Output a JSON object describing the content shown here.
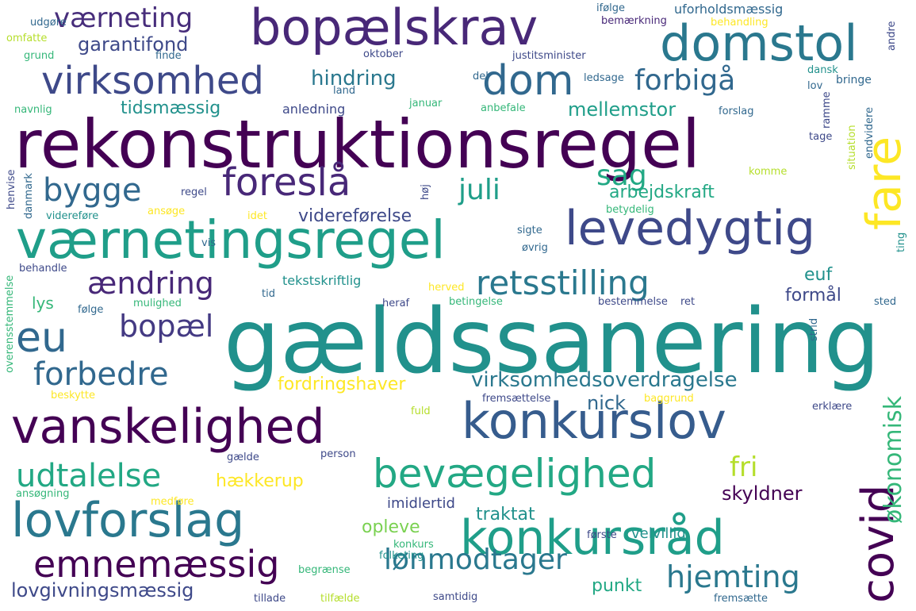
{
  "words": [
    {
      "text": "gældssanering",
      "color": "#21918c"
    },
    {
      "text": "rekonstruktionsregel",
      "color": "#440154"
    },
    {
      "text": "værnetingsregel",
      "color": "#1f9e89"
    },
    {
      "text": "bopælskrav",
      "color": "#482878"
    },
    {
      "text": "domstol",
      "color": "#2a788e"
    },
    {
      "text": "konkurslov",
      "color": "#365c8d"
    },
    {
      "text": "vanskelighed",
      "color": "#440154"
    },
    {
      "text": "lovforslag",
      "color": "#2a788e"
    },
    {
      "text": "konkursråd",
      "color": "#1f9e89"
    },
    {
      "text": "levedygtig",
      "color": "#3e4989"
    },
    {
      "text": "bevægelighed",
      "color": "#22a884"
    },
    {
      "text": "virksomhed",
      "color": "#3e4989"
    },
    {
      "text": "foreslå",
      "color": "#482878"
    },
    {
      "text": "dom",
      "color": "#31688e"
    },
    {
      "text": "retsstilling",
      "color": "#2a788e"
    },
    {
      "text": "fare",
      "color": "#fde725"
    },
    {
      "text": "covid",
      "color": "#440154"
    },
    {
      "text": "eu",
      "color": "#31688e"
    },
    {
      "text": "emnemæssig",
      "color": "#440154"
    },
    {
      "text": "forbedre",
      "color": "#31688e"
    },
    {
      "text": "bygge",
      "color": "#31688e"
    },
    {
      "text": "udtalelse",
      "color": "#22a884"
    },
    {
      "text": "forbigå",
      "color": "#31688e"
    },
    {
      "text": "ændring",
      "color": "#482878"
    },
    {
      "text": "bopæl",
      "color": "#443a83"
    },
    {
      "text": "økonomisk",
      "color": "#35b779"
    },
    {
      "text": "hjemting",
      "color": "#2a788e"
    },
    {
      "text": "lønmodtager",
      "color": "#2a788e"
    },
    {
      "text": "værneting",
      "color": "#472d7b"
    },
    {
      "text": "juli",
      "color": "#1f9e89"
    },
    {
      "text": "sag",
      "color": "#22a884"
    },
    {
      "text": "virksomhedsoverdragelse",
      "color": "#2a788e"
    },
    {
      "text": "lovgivningsmæssig",
      "color": "#3e4989"
    },
    {
      "text": "fri",
      "color": "#b5de2b"
    },
    {
      "text": "hindring",
      "color": "#2a788e"
    },
    {
      "text": "garantifond",
      "color": "#3e4989"
    },
    {
      "text": "mellemstor",
      "color": "#1f9e89"
    },
    {
      "text": "tidsmæssig",
      "color": "#21918c"
    },
    {
      "text": "arbejdskraft",
      "color": "#22a884"
    },
    {
      "text": "videreførelse",
      "color": "#3e4989"
    },
    {
      "text": "fordringshaver",
      "color": "#fde725"
    },
    {
      "text": "hækkerup",
      "color": "#fde725"
    },
    {
      "text": "skyldner",
      "color": "#440154"
    },
    {
      "text": "opleve",
      "color": "#7ad151"
    },
    {
      "text": "traktat",
      "color": "#21918c"
    },
    {
      "text": "punkt",
      "color": "#22a884"
    },
    {
      "text": "nick",
      "color": "#31688e"
    },
    {
      "text": "euf",
      "color": "#21918c"
    },
    {
      "text": "formål",
      "color": "#3e4989"
    },
    {
      "text": "lys",
      "color": "#35b779"
    },
    {
      "text": "imidlertid",
      "color": "#3e4989"
    },
    {
      "text": "velvillig",
      "color": "#21918c"
    },
    {
      "text": "tekstskriftlig",
      "color": "#21918c"
    },
    {
      "text": "uforholdsmæssig",
      "color": "#31688e"
    },
    {
      "text": "anledning",
      "color": "#3e4989"
    },
    {
      "text": "udgøre",
      "color": "#31688e"
    },
    {
      "text": "omfatte",
      "color": "#b5de2b"
    },
    {
      "text": "grund",
      "color": "#35b779"
    },
    {
      "text": "finde",
      "color": "#31688e"
    },
    {
      "text": "oktober",
      "color": "#3e4989"
    },
    {
      "text": "justitsminister",
      "color": "#3e4989"
    },
    {
      "text": "ifølge",
      "color": "#31688e"
    },
    {
      "text": "bemærkning",
      "color": "#482878"
    },
    {
      "text": "behandling",
      "color": "#fde725"
    },
    {
      "text": "del",
      "color": "#31688e"
    },
    {
      "text": "land",
      "color": "#31688e"
    },
    {
      "text": "ledsage",
      "color": "#31688e"
    },
    {
      "text": "dansk",
      "color": "#21918c"
    },
    {
      "text": "lov",
      "color": "#31688e"
    },
    {
      "text": "bringe",
      "color": "#31688e"
    },
    {
      "text": "navnlig",
      "color": "#35b779"
    },
    {
      "text": "januar",
      "color": "#35b779"
    },
    {
      "text": "anbefale",
      "color": "#35b779"
    },
    {
      "text": "forslag",
      "color": "#31688e"
    },
    {
      "text": "tage",
      "color": "#3e4989"
    },
    {
      "text": "komme",
      "color": "#b5de2b"
    },
    {
      "text": "regel",
      "color": "#3e4989"
    },
    {
      "text": "videreføre",
      "color": "#21918c"
    },
    {
      "text": "ansøge",
      "color": "#fde725"
    },
    {
      "text": "idet",
      "color": "#fde725"
    },
    {
      "text": "betydelig",
      "color": "#35b779"
    },
    {
      "text": "sigte",
      "color": "#31688e"
    },
    {
      "text": "øvrig",
      "color": "#31688e"
    },
    {
      "text": "vis",
      "color": "#31688e"
    },
    {
      "text": "behandle",
      "color": "#3e4989"
    },
    {
      "text": "mulighed",
      "color": "#35b779"
    },
    {
      "text": "tid",
      "color": "#31688e"
    },
    {
      "text": "herved",
      "color": "#fde725"
    },
    {
      "text": "følge",
      "color": "#31688e"
    },
    {
      "text": "heraf",
      "color": "#3e4989"
    },
    {
      "text": "betingelse",
      "color": "#35b779"
    },
    {
      "text": "bestemmelse",
      "color": "#3e4989"
    },
    {
      "text": "ret",
      "color": "#3e4989"
    },
    {
      "text": "sted",
      "color": "#31688e"
    },
    {
      "text": "beskytte",
      "color": "#fde725"
    },
    {
      "text": "fremsættelse",
      "color": "#3e4989"
    },
    {
      "text": "baggrund",
      "color": "#fde725"
    },
    {
      "text": "fuld",
      "color": "#b5de2b"
    },
    {
      "text": "erklære",
      "color": "#3e4989"
    },
    {
      "text": "gælde",
      "color": "#3e4989"
    },
    {
      "text": "person",
      "color": "#3e4989"
    },
    {
      "text": "ansøgning",
      "color": "#35b779"
    },
    {
      "text": "medføre",
      "color": "#fde725"
    },
    {
      "text": "første",
      "color": "#3e4989"
    },
    {
      "text": "konkurs",
      "color": "#35b779"
    },
    {
      "text": "folketing",
      "color": "#21918c"
    },
    {
      "text": "begrænse",
      "color": "#35b779"
    },
    {
      "text": "tillade",
      "color": "#3e4989"
    },
    {
      "text": "tilfælde",
      "color": "#b5de2b"
    },
    {
      "text": "samtidig",
      "color": "#3e4989"
    },
    {
      "text": "fremsætte",
      "color": "#31688e"
    },
    {
      "text": "andre",
      "color": "#3e4989"
    },
    {
      "text": "ramme",
      "color": "#3e4989"
    },
    {
      "text": "situation",
      "color": "#b5de2b"
    },
    {
      "text": "endvidere",
      "color": "#31688e"
    },
    {
      "text": "henvise",
      "color": "#3e4989"
    },
    {
      "text": "danmark",
      "color": "#31688e"
    },
    {
      "text": "høj",
      "color": "#3e4989"
    },
    {
      "text": "ting",
      "color": "#21918c"
    },
    {
      "text": "overensstemmelse",
      "color": "#35b779"
    },
    {
      "text": "strid",
      "color": "#31688e"
    }
  ]
}
